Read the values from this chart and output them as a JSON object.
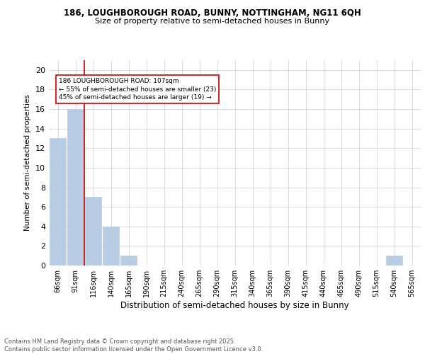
{
  "title1": "186, LOUGHBOROUGH ROAD, BUNNY, NOTTINGHAM, NG11 6QH",
  "title2": "Size of property relative to semi-detached houses in Bunny",
  "xlabel": "Distribution of semi-detached houses by size in Bunny",
  "ylabel": "Number of semi-detached properties",
  "categories": [
    "66sqm",
    "91sqm",
    "116sqm",
    "140sqm",
    "165sqm",
    "190sqm",
    "215sqm",
    "240sqm",
    "265sqm",
    "290sqm",
    "315sqm",
    "340sqm",
    "365sqm",
    "390sqm",
    "415sqm",
    "440sqm",
    "465sqm",
    "490sqm",
    "515sqm",
    "540sqm",
    "565sqm"
  ],
  "values": [
    13,
    16,
    7,
    4,
    1,
    0,
    0,
    0,
    0,
    0,
    0,
    0,
    0,
    0,
    0,
    0,
    0,
    0,
    0,
    1,
    0
  ],
  "bar_color": "#b8cce4",
  "bar_edge_color": "#b8cce4",
  "grid_color": "#cccccc",
  "background_color": "#ffffff",
  "subject_line_color": "#cc0000",
  "annotation_text": "186 LOUGHBOROUGH ROAD: 107sqm\n← 55% of semi-detached houses are smaller (23)\n45% of semi-detached houses are larger (19) →",
  "annotation_box_color": "#cc0000",
  "ylim": [
    0,
    21
  ],
  "yticks": [
    0,
    2,
    4,
    6,
    8,
    10,
    12,
    14,
    16,
    18,
    20
  ],
  "footer": "Contains HM Land Registry data © Crown copyright and database right 2025.\nContains public sector information licensed under the Open Government Licence v3.0."
}
